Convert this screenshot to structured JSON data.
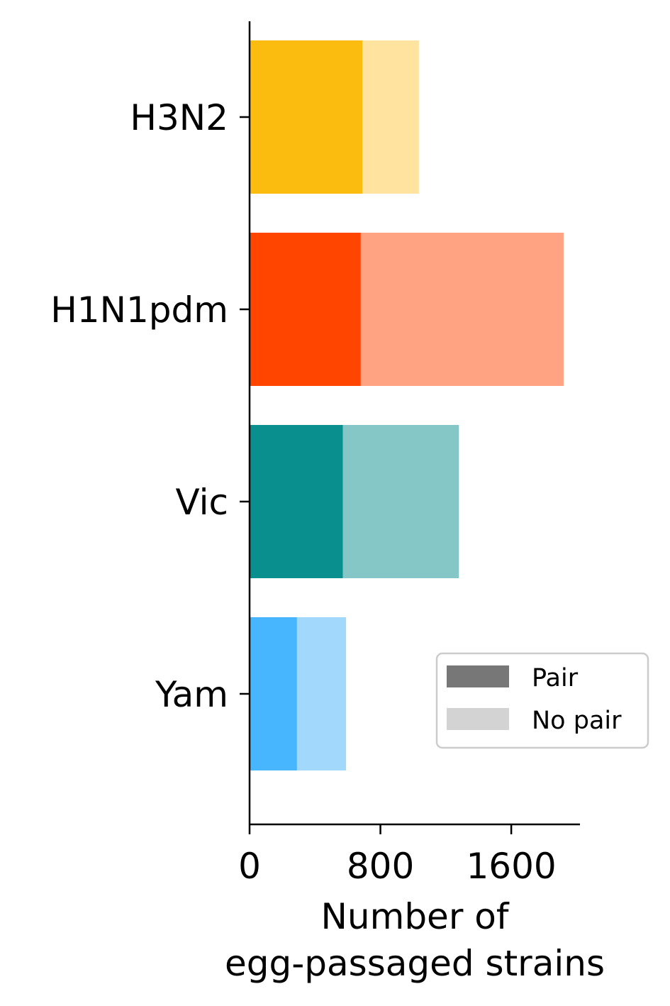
{
  "chart_data": {
    "type": "bar",
    "orientation": "horizontal",
    "stacked": true,
    "categories": [
      "H3N2",
      "H1N1pdm",
      "Vic",
      "Yam"
    ],
    "series": [
      {
        "name": "Pair",
        "values": [
          690,
          680,
          570,
          290
        ]
      },
      {
        "name": "No pair",
        "values": [
          345,
          1240,
          710,
          300
        ]
      }
    ],
    "colors": {
      "H3N2": {
        "pair": "#FBBC0F",
        "no_pair": "#FFE39E"
      },
      "H1N1pdm": {
        "pair": "#FF4500",
        "no_pair": "#FFA383"
      },
      "Vic": {
        "pair": "#0A8F8F",
        "no_pair": "#85C7C6"
      },
      "Yam": {
        "pair": "#48B5FF",
        "no_pair": "#A3D8FD"
      }
    },
    "legend": {
      "placement": "lower-right",
      "entries": [
        {
          "label": "Pair",
          "color": "#777777"
        },
        {
          "label": "No pair",
          "color": "#D3D3D3"
        }
      ]
    },
    "xlabel_lines": [
      "Number of",
      "egg-passaged strains"
    ],
    "xticks": [
      0,
      800,
      1600
    ],
    "xlim": [
      0,
      2020
    ],
    "grid": false
  }
}
